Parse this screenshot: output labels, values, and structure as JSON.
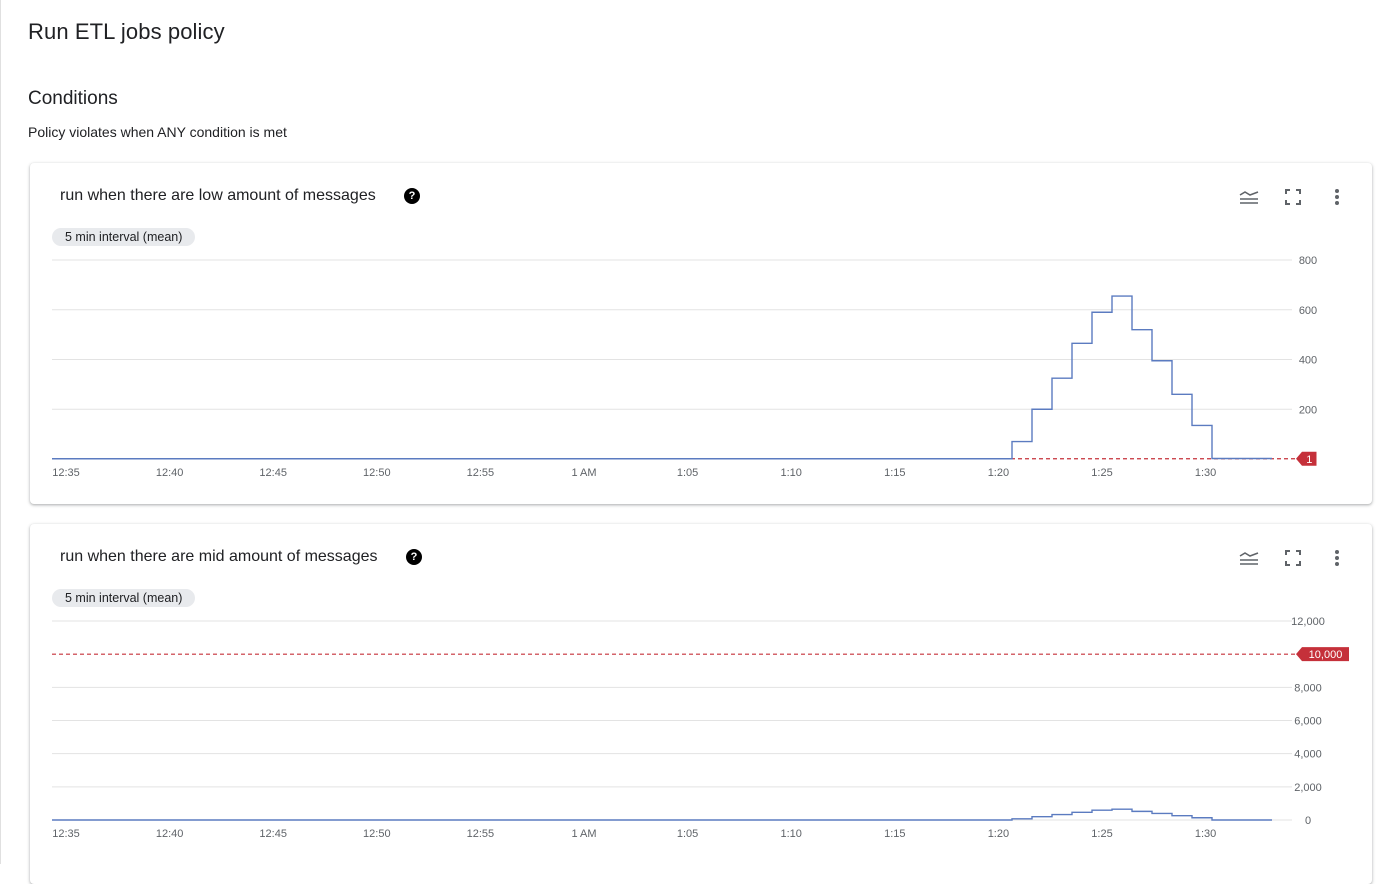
{
  "page": {
    "title": "Run ETL jobs policy",
    "section_title": "Conditions",
    "section_subtitle": "Policy violates when ANY condition is met"
  },
  "icons": {
    "help": "help-circle-icon",
    "legend": "legend-lines-icon",
    "expand": "fullscreen-icon",
    "more": "more-vert-icon"
  },
  "colors": {
    "series": "#5b7bc0",
    "threshold": "#c5303a",
    "grid": "#e3e3e3",
    "chip_bg": "#e8eaed"
  },
  "conditions": [
    {
      "title": "run when there are low amount of messages",
      "chip": "5 min interval (mean)",
      "threshold_label": "1"
    },
    {
      "title": "run when there are mid amount of messages",
      "chip": "5 min interval (mean)",
      "threshold_label": "10,000"
    }
  ],
  "chart_data": [
    {
      "type": "line",
      "step": true,
      "x_ticks": [
        "12:35",
        "12:40",
        "12:45",
        "12:50",
        "12:55",
        "1 AM",
        "1:05",
        "1:10",
        "1:15",
        "1:20",
        "1:25",
        "1:30"
      ],
      "y_ticks": [
        "800",
        "600",
        "400",
        "200"
      ],
      "ylim": [
        0,
        800
      ],
      "xlim": [
        0,
        62
      ],
      "grid": true,
      "threshold": 1,
      "series": [
        {
          "x": [
            0,
            48.0,
            49.0,
            50.0,
            51.0,
            52.0,
            53.0,
            54.0,
            55.0,
            56.0,
            57.0,
            58.0,
            59.0,
            60.0
          ],
          "y": [
            1,
            70,
            200,
            325,
            465,
            590,
            655,
            520,
            395,
            260,
            135,
            2,
            2,
            2
          ]
        }
      ]
    },
    {
      "type": "line",
      "step": true,
      "x_ticks": [
        "12:35",
        "12:40",
        "12:45",
        "12:50",
        "12:55",
        "1 AM",
        "1:05",
        "1:10",
        "1:15",
        "1:20",
        "1:25",
        "1:30"
      ],
      "y_ticks": [
        "12,000",
        "8,000",
        "6,000",
        "4,000",
        "2,000",
        "0"
      ],
      "ylim": [
        0,
        12000
      ],
      "xlim": [
        0,
        62
      ],
      "grid": true,
      "threshold": 10000,
      "series": [
        {
          "x": [
            0,
            48.0,
            49.0,
            50.0,
            51.0,
            52.0,
            53.0,
            54.0,
            55.0,
            56.0,
            57.0,
            58.0,
            59.0,
            60.0
          ],
          "y": [
            0,
            70,
            200,
            325,
            465,
            590,
            655,
            520,
            395,
            260,
            135,
            0,
            0,
            0
          ]
        }
      ]
    }
  ]
}
